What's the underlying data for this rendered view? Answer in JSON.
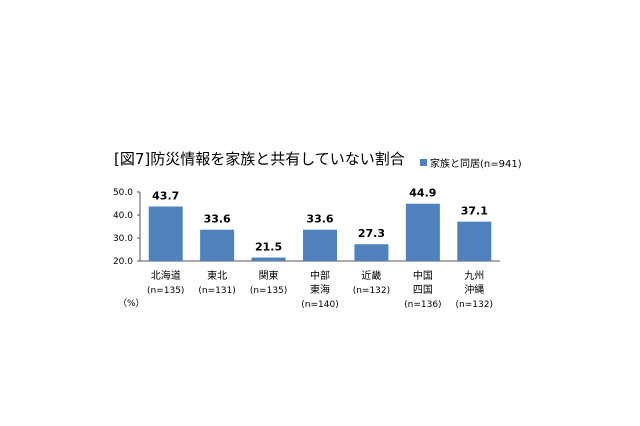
{
  "chart_data": {
    "type": "bar",
    "title": "[図7]防災情報を家族と共有していない割合",
    "unit_label": "（%）",
    "series": [
      {
        "name": "家族と同居(n=941)",
        "color": "#4f81bd",
        "values": [
          43.7,
          33.6,
          21.5,
          33.6,
          27.3,
          44.9,
          37.1
        ]
      }
    ],
    "categories": [
      {
        "lines": [
          "北海道"
        ],
        "n": "(n=135)"
      },
      {
        "lines": [
          "東北"
        ],
        "n": "(n=131)"
      },
      {
        "lines": [
          "関東"
        ],
        "n": "(n=135)"
      },
      {
        "lines": [
          "中部",
          "東海"
        ],
        "n": "(n=140)"
      },
      {
        "lines": [
          "近畿"
        ],
        "n": "(n=132)"
      },
      {
        "lines": [
          "中国",
          "四国"
        ],
        "n": "(n=136)"
      },
      {
        "lines": [
          "九州",
          "沖縄"
        ],
        "n": "(n=132)"
      }
    ],
    "value_labels": [
      "43.7",
      "33.6",
      "21.5",
      "33.6",
      "27.3",
      "44.9",
      "37.1"
    ],
    "ylim": [
      20,
      50
    ],
    "yticks": [
      "20.0",
      "30.0",
      "40.0",
      "50.0"
    ],
    "grid": false,
    "legend_position": "top-right"
  }
}
